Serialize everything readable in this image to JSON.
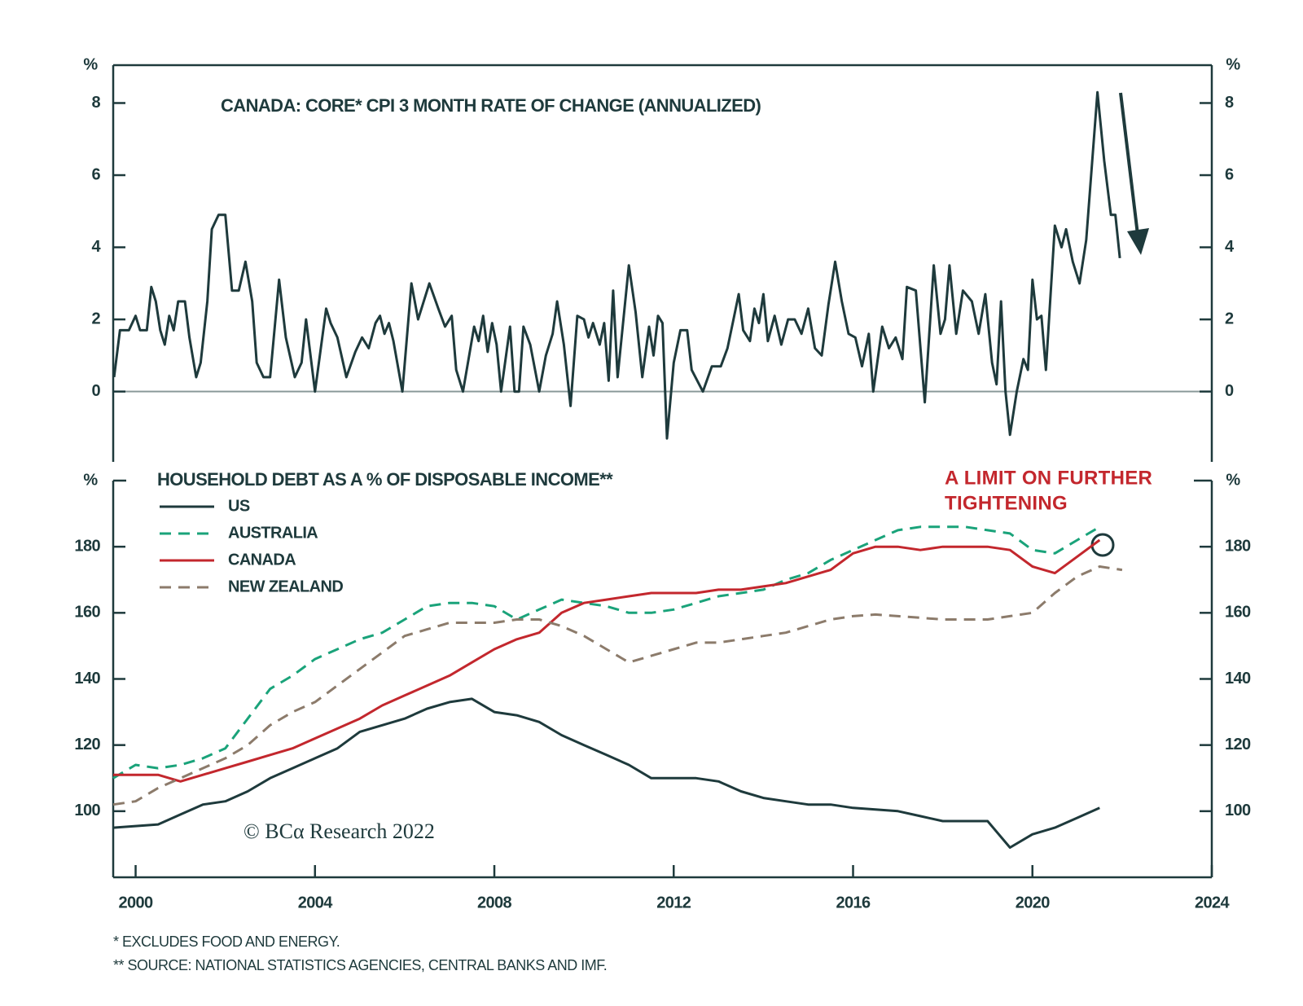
{
  "chart_data": [
    {
      "type": "line",
      "title": "CANADA: CORE* CPI 3 MONTH RATE OF CHANGE (ANNUALIZED)",
      "ylabel": "%",
      "color": "#1e3a3c",
      "zero_line": true,
      "xlim": [
        1999.5,
        2024
      ],
      "ylim": [
        -1.95,
        9.05
      ],
      "yticks": [
        0,
        2,
        4,
        6,
        8
      ],
      "x": [
        1999.52,
        1999.65,
        1999.85,
        2000.0,
        2000.1,
        2000.25,
        2000.35,
        2000.45,
        2000.55,
        2000.65,
        2000.75,
        2000.85,
        2000.95,
        2001.1,
        2001.2,
        2001.35,
        2001.45,
        2001.6,
        2001.7,
        2001.85,
        2002.0,
        2002.15,
        2002.3,
        2002.45,
        2002.6,
        2002.7,
        2002.85,
        2003.0,
        2003.2,
        2003.35,
        2003.55,
        2003.7,
        2003.8,
        2004.0,
        2004.25,
        2004.35,
        2004.5,
        2004.7,
        2004.9,
        2005.05,
        2005.2,
        2005.35,
        2005.45,
        2005.55,
        2005.65,
        2005.75,
        2005.95,
        2006.15,
        2006.3,
        2006.55,
        2006.75,
        2006.9,
        2007.05,
        2007.15,
        2007.3,
        2007.55,
        2007.65,
        2007.75,
        2007.85,
        2007.95,
        2008.05,
        2008.15,
        2008.35,
        2008.45,
        2008.55,
        2008.65,
        2008.8,
        2009.0,
        2009.15,
        2009.3,
        2009.4,
        2009.55,
        2009.7,
        2009.85,
        2010.0,
        2010.1,
        2010.2,
        2010.35,
        2010.45,
        2010.55,
        2010.65,
        2010.75,
        2011.0,
        2011.15,
        2011.3,
        2011.45,
        2011.55,
        2011.65,
        2011.75,
        2011.85,
        2012.0,
        2012.15,
        2012.3,
        2012.4,
        2012.65,
        2012.85,
        2013.05,
        2013.2,
        2013.35,
        2013.45,
        2013.55,
        2013.7,
        2013.8,
        2013.9,
        2014.0,
        2014.1,
        2014.25,
        2014.4,
        2014.55,
        2014.7,
        2014.85,
        2015.0,
        2015.15,
        2015.3,
        2015.45,
        2015.6,
        2015.75,
        2015.9,
        2016.05,
        2016.2,
        2016.35,
        2016.45,
        2016.65,
        2016.8,
        2016.95,
        2017.1,
        2017.2,
        2017.4,
        2017.6,
        2017.8,
        2017.95,
        2018.05,
        2018.15,
        2018.3,
        2018.45,
        2018.65,
        2018.8,
        2018.95,
        2019.1,
        2019.2,
        2019.3,
        2019.4,
        2019.5,
        2019.65,
        2019.8,
        2019.9,
        2020.0,
        2020.1,
        2020.2,
        2020.3,
        2020.5,
        2020.65,
        2020.75,
        2020.9,
        2021.05,
        2021.2,
        2021.45,
        2021.6,
        2021.75,
        2021.85,
        2021.95
      ],
      "values": [
        0.4,
        1.7,
        1.7,
        2.1,
        1.7,
        1.7,
        2.9,
        2.5,
        1.7,
        1.3,
        2.1,
        1.7,
        2.5,
        2.5,
        1.5,
        0.4,
        0.8,
        2.5,
        4.5,
        4.9,
        4.9,
        2.8,
        2.8,
        3.6,
        2.5,
        0.8,
        0.4,
        0.4,
        3.1,
        1.5,
        0.4,
        0.8,
        2.0,
        0.0,
        2.3,
        1.9,
        1.5,
        0.4,
        1.1,
        1.5,
        1.2,
        1.9,
        2.1,
        1.6,
        1.9,
        1.4,
        0.0,
        3.0,
        2.0,
        3.0,
        2.3,
        1.8,
        2.1,
        0.6,
        0.0,
        1.8,
        1.4,
        2.1,
        1.1,
        1.9,
        1.3,
        0.0,
        1.8,
        0.0,
        0.0,
        1.8,
        1.3,
        0.0,
        1.0,
        1.6,
        2.5,
        1.3,
        -0.4,
        2.1,
        2.0,
        1.5,
        1.9,
        1.3,
        1.9,
        0.3,
        2.8,
        0.4,
        3.5,
        2.2,
        0.4,
        1.8,
        1.0,
        2.1,
        1.9,
        -1.3,
        0.8,
        1.7,
        1.7,
        0.6,
        0.0,
        0.7,
        0.7,
        1.2,
        2.1,
        2.7,
        1.7,
        1.4,
        2.3,
        1.9,
        2.7,
        1.4,
        2.1,
        1.3,
        2.0,
        2.0,
        1.6,
        2.3,
        1.2,
        1.0,
        2.4,
        3.6,
        2.5,
        1.6,
        1.5,
        0.7,
        1.6,
        0.0,
        1.8,
        1.2,
        1.5,
        0.9,
        2.9,
        2.8,
        -0.3,
        3.5,
        1.6,
        2.0,
        3.5,
        1.6,
        2.8,
        2.5,
        1.6,
        2.7,
        0.8,
        0.2,
        2.5,
        0.0,
        -1.2,
        0.0,
        0.9,
        0.6,
        3.1,
        2.0,
        2.1,
        0.6,
        4.6,
        4.0,
        4.5,
        3.6,
        3.0,
        4.2,
        8.3,
        6.4,
        4.9,
        4.9,
        3.7
      ]
    },
    {
      "type": "line",
      "title": "HOUSEHOLD DEBT AS A % OF DISPOSABLE INCOME**",
      "ylabel": "%",
      "annotation": [
        "A LIMIT ON FURTHER",
        "TIGHTENING"
      ],
      "source": "© BCα Research 2022",
      "xlim": [
        1999.5,
        2024
      ],
      "xticks": [
        2000,
        2004,
        2008,
        2012,
        2016,
        2020,
        2024
      ],
      "ylim": [
        80,
        200
      ],
      "yticks": [
        100,
        120,
        140,
        160,
        180
      ],
      "x": [
        1999.5,
        2000,
        2000.5,
        2001,
        2001.5,
        2002,
        2002.5,
        2003,
        2003.5,
        2004,
        2004.5,
        2005,
        2005.5,
        2006,
        2006.5,
        2007,
        2007.5,
        2008,
        2008.5,
        2009,
        2009.5,
        2010,
        2010.5,
        2011,
        2011.5,
        2012,
        2012.5,
        2013,
        2013.5,
        2014,
        2014.5,
        2015,
        2015.5,
        2016,
        2016.5,
        2017,
        2017.5,
        2018,
        2018.5,
        2019,
        2019.5,
        2020,
        2020.5,
        2021,
        2021.5,
        2022
      ],
      "series": [
        {
          "name": "US",
          "color": "#1e3a3c",
          "style": "solid",
          "values": [
            95,
            95.5,
            96,
            99,
            102,
            103,
            106,
            110,
            113,
            116,
            119,
            124,
            126,
            128,
            131,
            133,
            134,
            130,
            129,
            127,
            123,
            120,
            117,
            114,
            110,
            110,
            110,
            109,
            106,
            104,
            103,
            102,
            102,
            101,
            100.5,
            100,
            98.5,
            97,
            97,
            97,
            89,
            93,
            95,
            98,
            101,
            null
          ]
        },
        {
          "name": "AUSTRALIA",
          "color": "#1aa37a",
          "style": "dashed",
          "values": [
            110,
            114,
            113,
            114,
            116,
            119,
            128,
            137,
            141,
            146,
            149,
            152,
            154,
            158,
            162,
            163,
            163,
            162,
            158,
            161,
            164,
            163,
            162,
            160,
            160,
            161,
            163,
            165,
            166,
            167,
            170,
            172,
            176,
            179,
            182,
            185,
            186,
            186,
            186,
            185,
            184,
            179,
            178,
            182,
            186,
            null
          ]
        },
        {
          "name": "CANADA",
          "color": "#c3272d",
          "style": "solid",
          "values": [
            111,
            111,
            111,
            109,
            111,
            113,
            115,
            117,
            119,
            122,
            125,
            128,
            132,
            135,
            138,
            141,
            145,
            149,
            152,
            154,
            160,
            163,
            164,
            165,
            166,
            166,
            166,
            167,
            167,
            168,
            169,
            171,
            173,
            178,
            180,
            180,
            179,
            180,
            180,
            180,
            179,
            174,
            172,
            177,
            182,
            null
          ]
        },
        {
          "name": "NEW ZEALAND",
          "color": "#8c7b6b",
          "style": "dashed",
          "values": [
            102,
            103,
            107,
            110,
            113,
            116,
            120,
            126,
            130,
            133,
            138,
            143,
            148,
            153,
            155,
            157,
            157,
            157,
            158,
            158,
            156,
            153,
            149,
            145,
            147,
            149,
            151,
            151,
            152,
            153,
            154,
            156,
            158,
            159,
            159.5,
            159,
            158.5,
            158,
            158,
            158,
            159,
            160,
            166,
            171,
            174,
            173
          ]
        }
      ]
    }
  ],
  "footnotes": [
    "*  EXCLUDES FOOD AND ENERGY.",
    "** SOURCE: NATIONAL STATISTICS AGENCIES, CENTRAL BANKS AND IMF."
  ]
}
